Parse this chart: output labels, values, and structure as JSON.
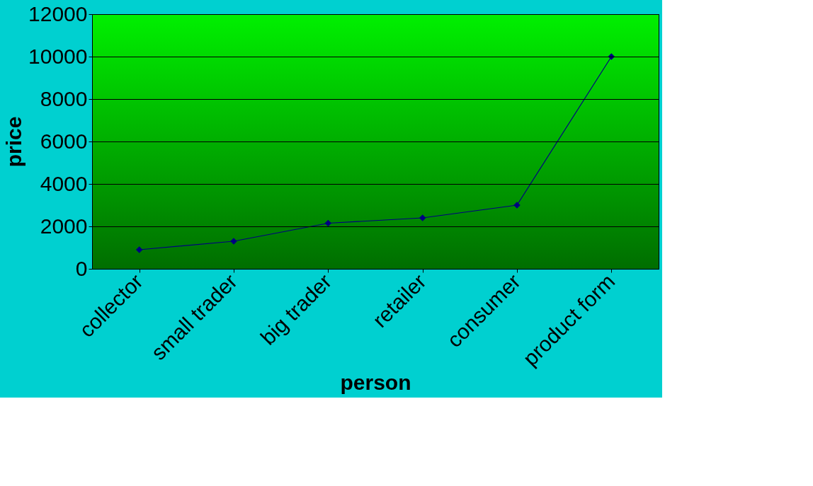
{
  "chart_data": {
    "type": "line",
    "xlabel": "person",
    "ylabel": "price",
    "categories": [
      "collector",
      "small trader",
      "big trader",
      "retailer",
      "consumer",
      "product form"
    ],
    "series": [
      {
        "color": "#000080",
        "values": [
          900,
          1300,
          2150,
          2400,
          3000,
          10000
        ]
      }
    ],
    "ylim": [
      0,
      12000
    ],
    "yticks": [
      0,
      2000,
      4000,
      6000,
      8000,
      10000,
      12000
    ],
    "grid": "y",
    "marker": "diamond",
    "line_style": "solid",
    "legend": false
  }
}
